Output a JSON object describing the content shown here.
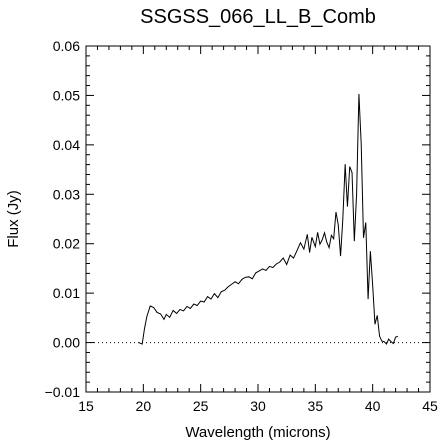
{
  "chart_data": {
    "type": "line",
    "title": "SSGSS_066_LL_B_Comb",
    "xlabel": "Wavelength (microns)",
    "ylabel": "Flux (Jy)",
    "xlim": [
      15,
      45
    ],
    "ylim": [
      -0.01,
      0.06
    ],
    "xticks": [
      15,
      20,
      25,
      30,
      35,
      40,
      45
    ],
    "yticks": [
      -0.01,
      0.0,
      0.01,
      0.02,
      0.03,
      0.04,
      0.05,
      0.06
    ],
    "xtick_labels": [
      "15",
      "20",
      "25",
      "30",
      "35",
      "40",
      "45"
    ],
    "ytick_labels": [
      "−0.01",
      "0.00",
      "0.01",
      "0.02",
      "0.03",
      "0.04",
      "0.05",
      "0.06"
    ],
    "grid": false,
    "reference_line": {
      "y": 0.0,
      "style": "dotted"
    },
    "line_color": "#000000",
    "series": [
      {
        "x": [
          19.6,
          19.9,
          20.1,
          20.3,
          20.6,
          20.9,
          21.2,
          21.5,
          21.8,
          22.0,
          22.3,
          22.6,
          22.9,
          23.2,
          23.5,
          23.8,
          24.1,
          24.4,
          24.7,
          25.0,
          25.3,
          25.6,
          25.9,
          26.2,
          26.5,
          26.8,
          27.1,
          27.4,
          27.7,
          28.0,
          28.3,
          28.6,
          28.9,
          29.2,
          29.5,
          29.8,
          30.1,
          30.4,
          30.7,
          31.0,
          31.3,
          31.6,
          31.9,
          32.2,
          32.5,
          32.8,
          33.1,
          33.4,
          33.7,
          34.0,
          34.3,
          34.5,
          34.7,
          35.0,
          35.2,
          35.4,
          35.6,
          35.8,
          36.0,
          36.2,
          36.4,
          36.6,
          36.8,
          37.0,
          37.2,
          37.4,
          37.6,
          37.8,
          38.0,
          38.2,
          38.4,
          38.6,
          38.8,
          39.0,
          39.2,
          39.4,
          39.6,
          39.8,
          40.0,
          40.2,
          40.4,
          40.6,
          40.8,
          41.0,
          41.2,
          41.4,
          41.6,
          41.8,
          42.0,
          42.2
        ],
        "y": [
          0.0,
          -0.0003,
          0.0028,
          0.0052,
          0.0074,
          0.0071,
          0.0061,
          0.0058,
          0.0047,
          0.0057,
          0.0051,
          0.0065,
          0.0059,
          0.0067,
          0.0064,
          0.0073,
          0.0069,
          0.0078,
          0.0075,
          0.0084,
          0.0082,
          0.0093,
          0.0088,
          0.0099,
          0.0091,
          0.0103,
          0.0106,
          0.0113,
          0.0118,
          0.0123,
          0.0119,
          0.0128,
          0.0132,
          0.0133,
          0.0129,
          0.0141,
          0.0145,
          0.0149,
          0.0146,
          0.0154,
          0.0152,
          0.0159,
          0.0163,
          0.0171,
          0.0158,
          0.0177,
          0.0171,
          0.0186,
          0.0202,
          0.0189,
          0.0219,
          0.0182,
          0.0213,
          0.0194,
          0.0223,
          0.0199,
          0.0208,
          0.0222,
          0.0203,
          0.0192,
          0.0217,
          0.021,
          0.0264,
          0.0238,
          0.0175,
          0.0251,
          0.0361,
          0.0275,
          0.0356,
          0.0344,
          0.0205,
          0.0301,
          0.0503,
          0.0402,
          0.0212,
          0.0243,
          0.0088,
          0.0185,
          0.0116,
          0.0037,
          0.0055,
          0.0013,
          0.0003,
          0.0002,
          -0.0003,
          0.0007,
          0.0002,
          -0.0002,
          0.0011,
          0.0013
        ]
      }
    ]
  }
}
